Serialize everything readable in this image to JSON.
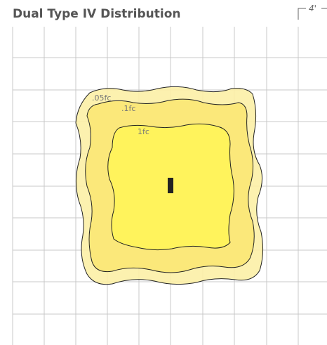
{
  "header": {
    "title": "Dual Type IV Distribution",
    "scale_label": "4'"
  },
  "contours": [
    {
      "label": ".05fc"
    },
    {
      "label": ".1fc"
    },
    {
      "label": "1fc"
    }
  ]
}
